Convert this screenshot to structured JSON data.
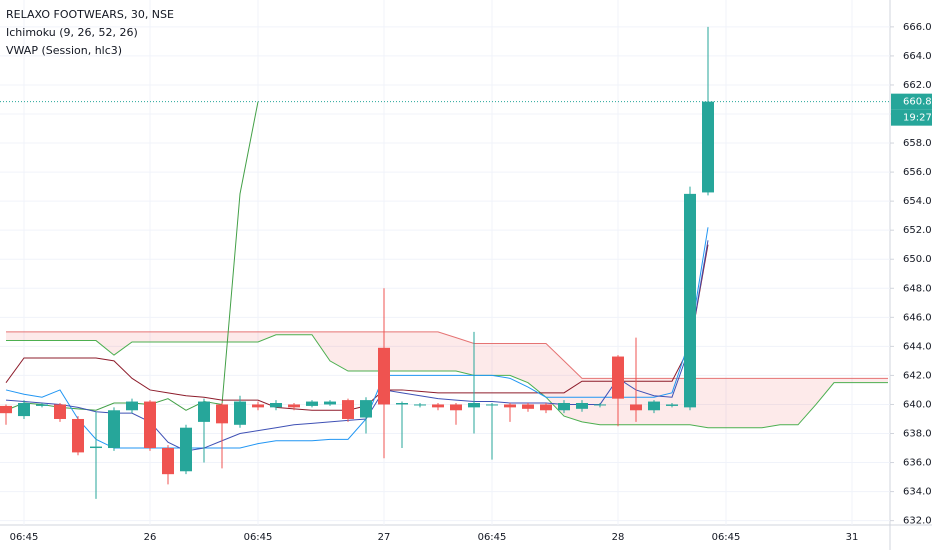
{
  "chart_data": {
    "type": "candlestick",
    "title": "RELAXO FOOTWEARS, 30, NSE",
    "indicators": [
      "Ichimoku (9, 26, 52, 26)",
      "VWAP (Session, hlc3)"
    ],
    "categories": [
      null,
      "06:45",
      null,
      null,
      null,
      null,
      null,
      null,
      "26",
      null,
      null,
      null,
      null,
      null,
      "06:45",
      null,
      null,
      null,
      null,
      null,
      null,
      "27",
      null,
      null,
      null,
      null,
      null,
      "06:45",
      null,
      null,
      null,
      null,
      null,
      null,
      "28",
      null,
      null,
      null,
      null,
      null,
      "06:45",
      null,
      null,
      null,
      null,
      null,
      null,
      "31",
      null,
      null
    ],
    "open": [
      639.9,
      639.2,
      639.9,
      640,
      639,
      637,
      637,
      639.6,
      640.2,
      637,
      635.4,
      638.8,
      640,
      638.6,
      640,
      639.8,
      640,
      639.9,
      640,
      640.3,
      639.1,
      643.9,
      640,
      640,
      640,
      640,
      639.8,
      640,
      640,
      640,
      640,
      639.6,
      639.7,
      640,
      643.3,
      640,
      639.6,
      639.9,
      639.8,
      654.6,
      null,
      null,
      null,
      null,
      null,
      null,
      null,
      null,
      null,
      null
    ],
    "high": [
      640,
      640.3,
      640.1,
      640.1,
      639.2,
      639.5,
      639.8,
      640.4,
      640.3,
      637.2,
      638.6,
      640.4,
      640.1,
      640.6,
      640.2,
      640.3,
      640.1,
      640.3,
      640.3,
      640.4,
      640.5,
      648,
      640.2,
      640.1,
      640.1,
      640.1,
      645,
      640.1,
      640.1,
      640.1,
      640.1,
      640.3,
      640.3,
      640.1,
      643.4,
      644.6,
      640.3,
      640.1,
      655,
      666,
      null,
      null,
      null,
      null,
      null,
      null,
      null,
      null,
      null,
      null
    ],
    "low": [
      638.6,
      639,
      639.8,
      638.8,
      636.5,
      633.5,
      636.8,
      639.4,
      636.8,
      634.5,
      635.2,
      636,
      635.6,
      638.4,
      639.6,
      639.6,
      639.6,
      639.8,
      639.9,
      638.8,
      638,
      636.3,
      637,
      639.8,
      639.6,
      638.6,
      638,
      636.2,
      638.8,
      639.5,
      639.4,
      639.4,
      639.5,
      639.8,
      638.5,
      638.8,
      639.4,
      639.8,
      639.6,
      654.4,
      null,
      null,
      null,
      null,
      null,
      null,
      null,
      null,
      null,
      null
    ],
    "close": [
      639.4,
      640.1,
      640,
      639,
      636.7,
      637.1,
      639.6,
      640.2,
      637,
      635.2,
      638.4,
      640.2,
      638.7,
      640.2,
      639.8,
      640.1,
      639.8,
      640.2,
      640.2,
      639,
      640.3,
      640,
      640.1,
      640,
      639.8,
      639.6,
      640.1,
      640,
      639.8,
      639.7,
      639.6,
      640.1,
      640.1,
      640,
      640.4,
      639.6,
      640.2,
      640,
      654.5,
      660.85,
      null,
      null,
      null,
      null,
      null,
      null,
      null,
      null,
      null,
      null
    ],
    "up_color": "#26a69a",
    "down_color": "#ef5350",
    "cloud_color": "#ef5350",
    "series": [
      {
        "color": "#e57373",
        "role": "lead_b",
        "values": [
          645,
          645,
          645,
          645,
          645,
          645,
          645,
          645,
          645,
          645,
          645,
          645,
          645,
          645,
          645,
          645,
          645,
          645,
          645,
          645,
          645,
          645,
          645,
          645,
          645,
          644.6,
          644.2,
          644.2,
          644.2,
          644.2,
          644.2,
          643,
          641.8,
          641.8,
          641.8,
          641.8,
          641.8,
          641.8,
          641.8,
          641.8,
          641.8,
          641.8,
          641.8,
          641.8,
          641.8,
          641.8,
          641.8,
          641.8,
          641.8,
          641.8
        ]
      },
      {
        "color": "#4caf50",
        "role": "lead_a",
        "values": [
          644.4,
          644.4,
          644.4,
          644.4,
          644.4,
          644.4,
          643.4,
          644.3,
          644.3,
          644.3,
          644.3,
          644.3,
          644.3,
          644.3,
          644.3,
          644.8,
          644.8,
          644.8,
          643,
          642.3,
          642.3,
          642.3,
          642.3,
          642.3,
          642.3,
          642.3,
          642,
          642,
          642,
          641.5,
          640.5,
          639.2,
          638.8,
          638.6,
          638.6,
          638.6,
          638.6,
          638.6,
          638.6,
          638.4,
          638.4,
          638.4,
          638.4,
          638.6,
          638.6,
          640,
          641.5,
          641.5,
          641.5,
          641.5
        ]
      },
      {
        "color": "#43a047",
        "role": "line",
        "values": [
          639.6,
          640.1,
          640,
          639.8,
          639.7,
          639.6,
          640.1,
          640.1,
          640,
          640.4,
          639.6,
          640.2,
          640,
          654.5,
          660.85,
          null,
          null,
          null,
          null,
          null,
          null,
          null,
          null,
          null,
          null,
          null,
          null,
          null,
          null,
          null,
          null,
          null,
          null,
          null,
          null,
          null,
          null,
          null,
          null,
          null,
          null,
          null,
          null,
          null,
          null,
          null,
          null,
          null,
          null,
          null
        ]
      },
      {
        "color": "#8d1c2b",
        "role": "line",
        "values": [
          641.5,
          643.2,
          643.2,
          643.2,
          643.2,
          643.2,
          643,
          641.8,
          641,
          640.8,
          640.6,
          640.5,
          640.3,
          640.3,
          640.3,
          639.8,
          639.7,
          639.6,
          639.6,
          639.6,
          639.9,
          641,
          641,
          640.9,
          640.8,
          640.8,
          640.8,
          640.8,
          640.8,
          640.8,
          640.8,
          640.8,
          641.6,
          641.6,
          641.6,
          641.6,
          641.6,
          641.6,
          644,
          651,
          null,
          null,
          null,
          null,
          null,
          null,
          null,
          null,
          null,
          null
        ]
      },
      {
        "color": "#2196f3",
        "role": "line",
        "values": [
          641,
          640.7,
          640.5,
          641,
          639,
          637.6,
          637,
          637,
          637,
          637,
          637,
          637,
          637,
          637,
          637.3,
          637.5,
          637.5,
          637.5,
          637.6,
          637.6,
          639,
          642,
          642,
          642,
          642,
          642,
          642,
          642,
          641.8,
          641.2,
          640.5,
          640.5,
          640.5,
          640.5,
          640.5,
          640.5,
          640.5,
          640.8,
          644.5,
          652.2,
          null,
          null,
          null,
          null,
          null,
          null,
          null,
          null,
          null,
          null
        ]
      },
      {
        "color": "#3f51b5",
        "role": "line",
        "values": [
          640.3,
          640.2,
          640.1,
          640,
          639.8,
          639.5,
          639.4,
          639.4,
          638.8,
          637.4,
          636.8,
          637,
          637.5,
          638,
          638.2,
          638.4,
          638.6,
          638.7,
          638.8,
          638.9,
          639,
          641,
          640.8,
          640.6,
          640.4,
          640.3,
          640.2,
          640.2,
          640.1,
          640.1,
          640.1,
          640,
          640,
          640,
          641.8,
          641,
          640.6,
          640.5,
          644,
          651.3,
          null,
          null,
          null,
          null,
          null,
          null,
          null,
          null,
          null,
          null
        ]
      }
    ],
    "ylim": [
      631.7,
      667.85
    ],
    "yticks": [
      {
        "value": 632,
        "label": "632.00"
      },
      {
        "value": 634,
        "label": "634.00"
      },
      {
        "value": 636,
        "label": "636.00"
      },
      {
        "value": 638,
        "label": "638.00"
      },
      {
        "value": 640,
        "label": "640.00"
      },
      {
        "value": 642,
        "label": "642.00"
      },
      {
        "value": 644,
        "label": "644.00"
      },
      {
        "value": 646,
        "label": "646.00"
      },
      {
        "value": 648,
        "label": "648.00"
      },
      {
        "value": 650,
        "label": "650.00"
      },
      {
        "value": 652,
        "label": "652.00"
      },
      {
        "value": 654,
        "label": "654.00"
      },
      {
        "value": 656,
        "label": "656.00"
      },
      {
        "value": 658,
        "label": "658.00"
      },
      {
        "value": 660,
        "label": "660.00"
      },
      {
        "value": 662,
        "label": "662.00"
      },
      {
        "value": 664,
        "label": "664.00"
      },
      {
        "value": 666,
        "label": "666.00"
      }
    ],
    "grid": true,
    "last_price": {
      "value": 660.85,
      "label": "660.85"
    },
    "countdown": "19:27"
  }
}
